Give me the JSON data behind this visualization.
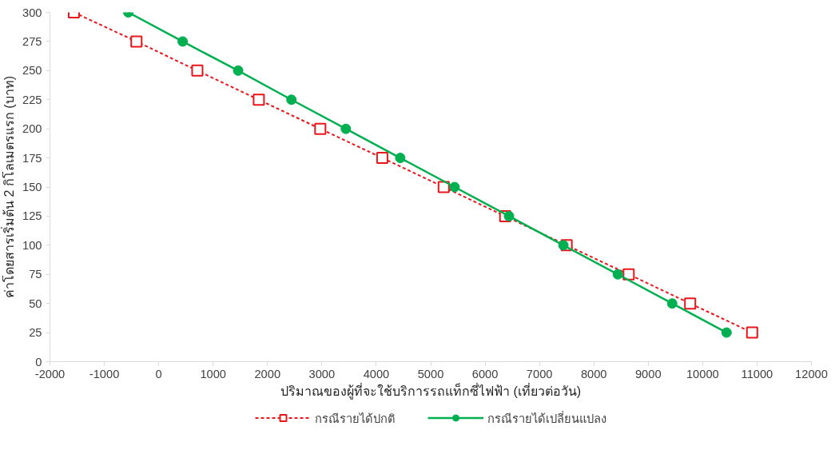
{
  "chart_data": {
    "type": "line",
    "xlabel": "ปริมาณของผู้ที่จะใช้บริการรถแท็กซี่ไฟฟ้า (เที่ยวต่อวัน)",
    "ylabel": "ค่าโดยสารเริ่มต้น 2 กิโลเมตรแรก (บาท)",
    "xlim": [
      -2000,
      12000
    ],
    "xticks": [
      -2000,
      -1000,
      0,
      1000,
      2000,
      3000,
      4000,
      5000,
      6000,
      7000,
      8000,
      9000,
      10000,
      11000,
      12000
    ],
    "ylim": [
      0,
      300
    ],
    "yticks": [
      0,
      25,
      50,
      75,
      100,
      125,
      150,
      175,
      200,
      225,
      250,
      275,
      300
    ],
    "grid": false,
    "legend": "bottom",
    "series": [
      {
        "name": "กรณีรายได้ปกติ",
        "color": "#e8161b",
        "marker": "square",
        "line_style": "dashed",
        "x": [
          -1560,
          -410,
          710,
          1840,
          2970,
          4110,
          5240,
          6370,
          7500,
          8640,
          9770,
          10910
        ],
        "values": [
          300,
          275,
          250,
          225,
          200,
          175,
          150,
          125,
          100,
          75,
          50,
          25
        ]
      },
      {
        "name": "กรณีรายได้เปลี่ยนแปลง",
        "color": "#00b050",
        "marker": "circle",
        "line_style": "solid",
        "x": [
          -560,
          440,
          1460,
          2440,
          3440,
          4440,
          5440,
          6440,
          7440,
          8440,
          9440,
          10440
        ],
        "values": [
          300,
          275,
          250,
          225,
          200,
          175,
          150,
          125,
          100,
          75,
          50,
          25
        ]
      }
    ]
  }
}
